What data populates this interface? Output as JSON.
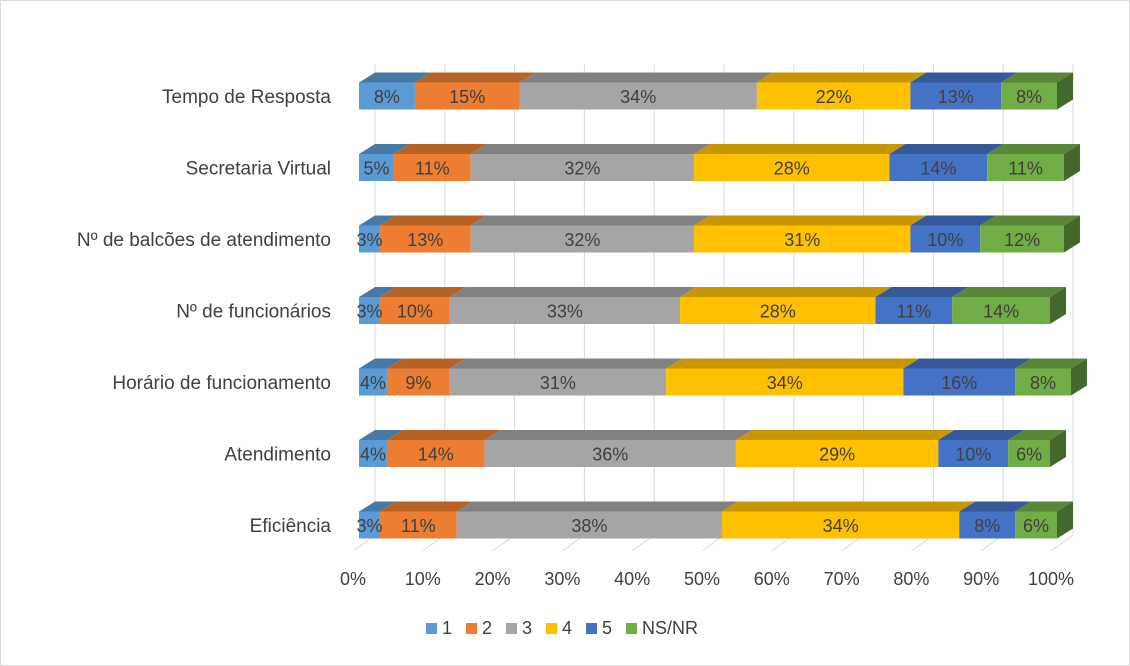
{
  "chart_data": {
    "type": "bar",
    "orientation": "horizontal",
    "stacked": "100%",
    "style": "3d",
    "categories": [
      "Tempo de Resposta",
      "Secretaria Virtual",
      "Nº de balcões de atendimento",
      "Nº de funcionários",
      "Horário de funcionamento",
      "Atendimento",
      "Eficiência"
    ],
    "series": [
      {
        "name": "1",
        "color": "#5b9bd5",
        "values": [
          8,
          5,
          3,
          3,
          4,
          4,
          3
        ],
        "labels": [
          "8%",
          "5%",
          "3%",
          "3%",
          "4%",
          "4%",
          "3%"
        ]
      },
      {
        "name": "2",
        "color": "#ed7d31",
        "values": [
          15,
          11,
          13,
          10,
          9,
          14,
          11
        ],
        "labels": [
          "15%",
          "11%",
          "13%",
          "10%",
          "9%",
          "14%",
          "11%"
        ]
      },
      {
        "name": "3",
        "color": "#a5a5a5",
        "values": [
          34,
          32,
          32,
          33,
          31,
          36,
          38
        ],
        "labels": [
          "34%",
          "32%",
          "32%",
          "33%",
          "31%",
          "36%",
          "38%"
        ]
      },
      {
        "name": "4",
        "color": "#ffc000",
        "values": [
          22,
          28,
          31,
          28,
          34,
          29,
          34
        ],
        "labels": [
          "22%",
          "28%",
          "31%",
          "28%",
          "34%",
          "29%",
          "34%"
        ]
      },
      {
        "name": "5",
        "color": "#4472c4",
        "values": [
          13,
          14,
          10,
          11,
          16,
          10,
          8
        ],
        "labels": [
          "13%",
          "14%",
          "10%",
          "11%",
          "16%",
          "10%",
          "8%"
        ]
      },
      {
        "name": "NS/NR",
        "color": "#70ad47",
        "values": [
          8,
          11,
          12,
          14,
          8,
          6,
          6
        ],
        "labels": [
          "8%",
          "11%",
          "12%",
          "14%",
          "8%",
          "6%",
          "6%"
        ]
      }
    ],
    "x_ticks": [
      "0%",
      "10%",
      "20%",
      "30%",
      "40%",
      "50%",
      "60%",
      "70%",
      "80%",
      "90%",
      "100%"
    ],
    "xlim": [
      0,
      100
    ],
    "grid": true,
    "legend_position": "bottom"
  }
}
